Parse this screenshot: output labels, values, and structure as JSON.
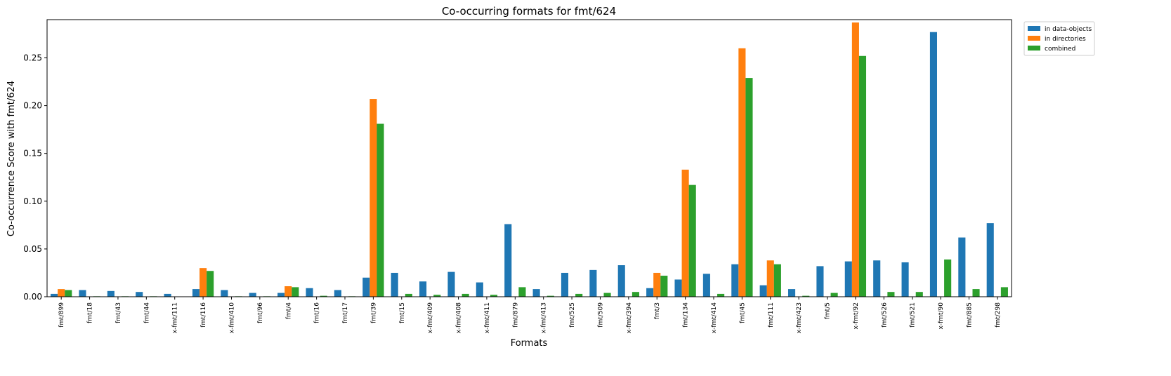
{
  "chart_data": {
    "type": "bar",
    "title": "Co-occurring formats for fmt/624",
    "xlabel": "Formats",
    "ylabel": "Co-occurrence Score with fmt/624",
    "ylim": [
      0,
      0.29
    ],
    "yticks": [
      0.0,
      0.05,
      0.1,
      0.15,
      0.2,
      0.25
    ],
    "ytick_labels": [
      "0.00",
      "0.05",
      "0.10",
      "0.15",
      "0.20",
      "0.25"
    ],
    "grid": false,
    "legend_position": "top-right, outside plot",
    "categories": [
      "fmt/899",
      "fmt/18",
      "fmt/43",
      "fmt/44",
      "x-fmt/111",
      "fmt/116",
      "x-fmt/410",
      "fmt/96",
      "fmt/4",
      "fmt/16",
      "fmt/17",
      "fmt/39",
      "fmt/15",
      "x-fmt/409",
      "x-fmt/408",
      "x-fmt/411",
      "fmt/879",
      "x-fmt/413",
      "fmt/525",
      "fmt/509",
      "x-fmt/394",
      "fmt/3",
      "fmt/134",
      "x-fmt/414",
      "fmt/45",
      "fmt/111",
      "x-fmt/423",
      "fmt/5",
      "x-fmt/92",
      "fmt/526",
      "fmt/521",
      "x-fmt/90",
      "fmt/885",
      "fmt/298"
    ],
    "series": [
      {
        "name": "in data-objects",
        "color": "#1f77b4",
        "values": [
          0.003,
          0.007,
          0.006,
          0.005,
          0.003,
          0.008,
          0.007,
          0.004,
          0.004,
          0.009,
          0.007,
          0.02,
          0.025,
          0.016,
          0.026,
          0.015,
          0.076,
          0.008,
          0.025,
          0.028,
          0.033,
          0.009,
          0.018,
          0.024,
          0.034,
          0.012,
          0.008,
          0.032,
          0.037,
          0.038,
          0.036,
          0.277,
          0.062,
          0.077
        ]
      },
      {
        "name": "in directories",
        "color": "#ff7f0e",
        "values": [
          0.008,
          0.0,
          0.0,
          0.0,
          0.0,
          0.03,
          0.0,
          0.0,
          0.011,
          0.0,
          0.0,
          0.207,
          0.0,
          0.0,
          0.0,
          0.0,
          0.0,
          0.0,
          0.0,
          0.0,
          0.0,
          0.025,
          0.133,
          0.0,
          0.26,
          0.038,
          0.0,
          0.0,
          0.287,
          0.0,
          0.0,
          0.0,
          0.0,
          0.0
        ]
      },
      {
        "name": "combined",
        "color": "#2ca02c",
        "values": [
          0.007,
          0.0005,
          0.0005,
          0.0005,
          0.0,
          0.027,
          0.0005,
          0.0005,
          0.01,
          0.001,
          0.0005,
          0.181,
          0.003,
          0.002,
          0.003,
          0.002,
          0.01,
          0.001,
          0.003,
          0.004,
          0.005,
          0.022,
          0.117,
          0.003,
          0.229,
          0.034,
          0.001,
          0.004,
          0.252,
          0.005,
          0.005,
          0.039,
          0.008,
          0.01
        ]
      }
    ]
  }
}
